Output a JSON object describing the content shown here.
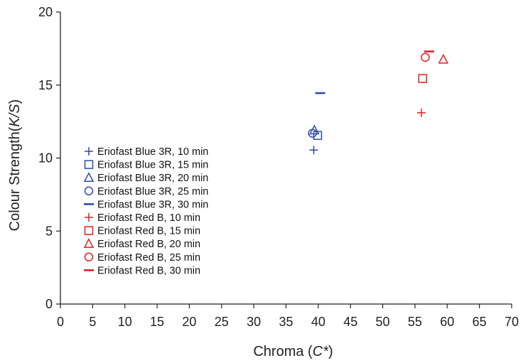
{
  "chart_data": {
    "type": "scatter",
    "title": "",
    "xlabel": {
      "prefix": "Chroma (",
      "italic": "C*",
      "suffix": ")"
    },
    "ylabel": {
      "prefix": "Colour Strength(",
      "italic": "K/S",
      "suffix": ")"
    },
    "xlim": [
      0,
      70
    ],
    "ylim": [
      0,
      20
    ],
    "x_ticks": [
      0,
      5,
      10,
      15,
      20,
      25,
      30,
      35,
      40,
      45,
      50,
      55,
      60,
      65,
      70
    ],
    "y_ticks": [
      0,
      5,
      10,
      15,
      20
    ],
    "grid": false,
    "legend_position": "left",
    "series": [
      {
        "name": "Eriofast Blue 3R, 10 min",
        "marker": "plus",
        "color": "#2e4aa8",
        "points": [
          [
            39.3,
            10.55
          ]
        ]
      },
      {
        "name": "Eriofast Blue 3R, 15 min",
        "marker": "square",
        "color": "#2e4aa8",
        "points": [
          [
            39.9,
            11.55
          ]
        ]
      },
      {
        "name": "Eriofast Blue 3R, 20 min",
        "marker": "triangle",
        "color": "#2e4aa8",
        "points": [
          [
            39.4,
            11.9
          ]
        ]
      },
      {
        "name": "Eriofast Blue 3R, 25 min",
        "marker": "circle",
        "color": "#2e4aa8",
        "points": [
          [
            39.1,
            11.7
          ]
        ]
      },
      {
        "name": "Eriofast Blue 3R, 30 min",
        "marker": "dash",
        "color": "#2e4aa8",
        "points": [
          [
            40.3,
            14.45
          ]
        ]
      },
      {
        "name": "Eriofast Red B, 10 min",
        "marker": "plus",
        "color": "#e02020",
        "points": [
          [
            56.0,
            13.1
          ]
        ]
      },
      {
        "name": "Eriofast Red B, 15 min",
        "marker": "square",
        "color": "#e02020",
        "points": [
          [
            56.2,
            15.45
          ]
        ]
      },
      {
        "name": "Eriofast Red B, 20 min",
        "marker": "triangle",
        "color": "#e02020",
        "points": [
          [
            59.4,
            16.75
          ]
        ]
      },
      {
        "name": "Eriofast Red B, 25 min",
        "marker": "circle",
        "color": "#e02020",
        "points": [
          [
            56.6,
            16.9
          ]
        ]
      },
      {
        "name": "Eriofast Red B, 30 min",
        "marker": "dash",
        "color": "#e02020",
        "points": [
          [
            57.2,
            17.3
          ]
        ]
      }
    ]
  }
}
